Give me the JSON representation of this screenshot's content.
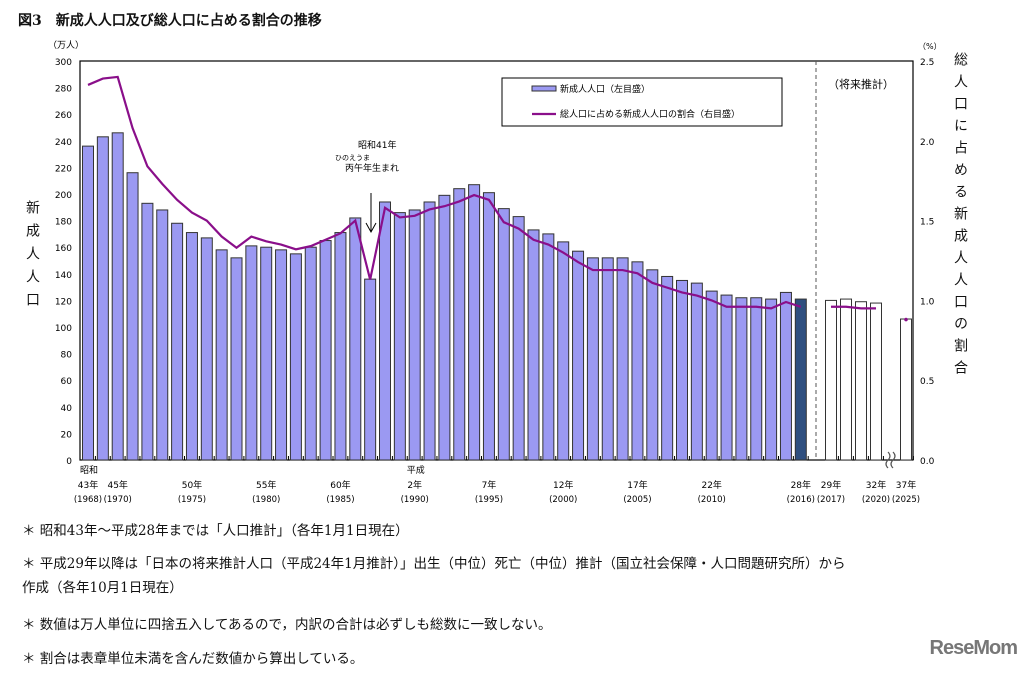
{
  "title": "図3　新成人人口及び総人口に占める割合の推移",
  "chart_data": {
    "type": "bar+line",
    "title": "図3　新成人人口及び総人口に占める割合の推移",
    "left_axis": {
      "unit": "（万人）",
      "label": "新成人人口",
      "ylim": [
        0,
        300
      ],
      "ticks": [
        0,
        20,
        40,
        60,
        80,
        100,
        120,
        140,
        160,
        180,
        200,
        220,
        240,
        260,
        280,
        300
      ]
    },
    "right_axis": {
      "unit": "（%）",
      "label": "総人口に占める新成人人口の割合",
      "ylim": [
        0,
        2.5
      ],
      "ticks": [
        "0.0",
        "0.5",
        "1.0",
        "1.5",
        "2.0",
        "2.5"
      ]
    },
    "legend": {
      "position": "top-center",
      "bar": "新成人人口（左目盛）",
      "line": "総人口に占める新成人人口の割合（右目盛）"
    },
    "forecast_label": "（将来推計）",
    "annotation": {
      "line1": "昭和41年",
      "ruby": "ひのえうま",
      "line2": "丙午年生まれ",
      "year": 1987
    },
    "x_labels": [
      {
        "year": 1968,
        "era": "昭和",
        "label": "43年",
        "west": "(1968)"
      },
      {
        "year": 1970,
        "label": "45年",
        "west": "(1970)"
      },
      {
        "year": 1975,
        "label": "50年",
        "west": "(1975)"
      },
      {
        "year": 1980,
        "label": "55年",
        "west": "(1980)"
      },
      {
        "year": 1985,
        "label": "60年",
        "west": "(1985)"
      },
      {
        "year": 1990,
        "era": "平成",
        "label": "2年",
        "west": "(1990)"
      },
      {
        "year": 1995,
        "label": "7年",
        "west": "(1995)"
      },
      {
        "year": 2000,
        "label": "12年",
        "west": "(2000)"
      },
      {
        "year": 2005,
        "label": "17年",
        "west": "(2005)"
      },
      {
        "year": 2010,
        "label": "22年",
        "west": "(2010)"
      },
      {
        "year": 2016,
        "label": "28年",
        "west": "(2016)"
      },
      {
        "year": 2017,
        "label": "29年",
        "west": "(2017)"
      },
      {
        "year": 2020,
        "label": "32年",
        "west": "(2020)"
      },
      {
        "year": 2025,
        "label": "37年",
        "west": "(2025)"
      }
    ],
    "years": [
      1968,
      1969,
      1970,
      1971,
      1972,
      1973,
      1974,
      1975,
      1976,
      1977,
      1978,
      1979,
      1980,
      1981,
      1982,
      1983,
      1984,
      1985,
      1986,
      1987,
      1988,
      1989,
      1990,
      1991,
      1992,
      1993,
      1994,
      1995,
      1996,
      1997,
      1998,
      1999,
      2000,
      2001,
      2002,
      2003,
      2004,
      2005,
      2006,
      2007,
      2008,
      2009,
      2010,
      2011,
      2012,
      2013,
      2014,
      2015,
      2016,
      2017,
      2018,
      2019,
      2020,
      2025
    ],
    "series": [
      {
        "name": "新成人人口（左目盛）",
        "type": "bar",
        "unit": "万人",
        "values": [
          236,
          243,
          246,
          216,
          193,
          188,
          178,
          171,
          167,
          158,
          152,
          161,
          160,
          158,
          155,
          160,
          165,
          171,
          182,
          136,
          194,
          186,
          188,
          194,
          199,
          204,
          207,
          201,
          189,
          183,
          173,
          170,
          164,
          157,
          152,
          152,
          152,
          149,
          143,
          138,
          135,
          133,
          127,
          124,
          122,
          122,
          121,
          126,
          121,
          120,
          121,
          119,
          118,
          106
        ]
      },
      {
        "name": "総人口に占める新成人人口の割合（右目盛）",
        "type": "line",
        "unit": "%",
        "values": [
          2.35,
          2.39,
          2.4,
          2.08,
          1.84,
          1.73,
          1.63,
          1.55,
          1.5,
          1.4,
          1.33,
          1.4,
          1.37,
          1.35,
          1.32,
          1.34,
          1.38,
          1.42,
          1.5,
          1.13,
          1.58,
          1.52,
          1.53,
          1.57,
          1.59,
          1.62,
          1.66,
          1.63,
          1.49,
          1.45,
          1.38,
          1.35,
          1.3,
          1.24,
          1.19,
          1.19,
          1.19,
          1.17,
          1.11,
          1.08,
          1.05,
          1.03,
          1.0,
          0.96,
          0.96,
          0.96,
          0.95,
          0.99,
          0.96,
          0.96,
          0.96,
          0.95,
          0.95,
          0.88
        ]
      }
    ],
    "highlight_year": 2016,
    "forecast_from": 2017,
    "colors": {
      "bar": "#9b99f2",
      "bar_highlight": "#2f4f7f",
      "bar_forecast": "#ffffff",
      "line": "#8a0f8a"
    }
  },
  "notes": [
    "＊ 昭和43年～平成28年までは「人口推計」（各年1月1日現在）",
    "＊ 平成29年以降は「日本の将来推計人口（平成24年1月推計）」出生（中位）死亡（中位）推計（国立社会保障・人口問題研究所）から",
    "作成（各年10月1日現在）",
    "＊ 数値は万人単位に四捨五入してあるので，内訳の合計は必ずしも総数に一致しない。",
    "＊ 割合は表章単位未満を含んだ数値から算出している。"
  ],
  "logo": "ReseMom"
}
